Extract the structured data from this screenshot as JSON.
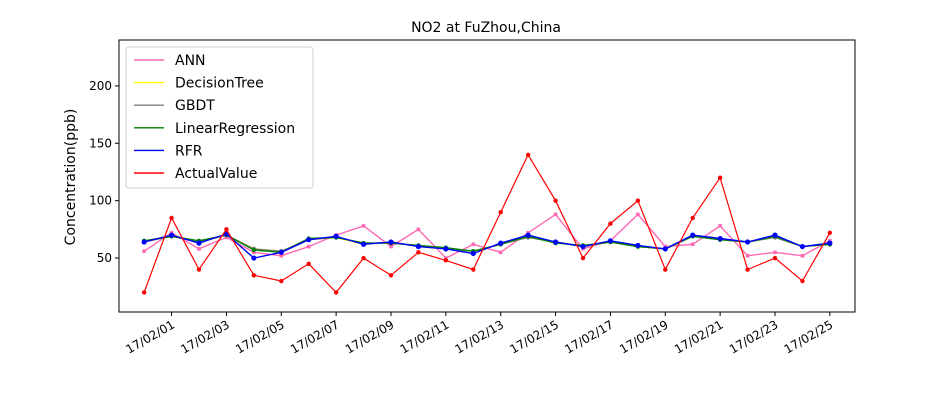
{
  "chart_data": {
    "type": "line",
    "title": "NO2 at FuZhou,China",
    "xlabel": "",
    "ylabel": "Concentration(ppb)",
    "x_unit": "date",
    "xlim": [
      "2017-01-30T02:00",
      "2017-02-25T22:00"
    ],
    "ylim": [
      3,
      240
    ],
    "xticks": [
      "17/02/01",
      "17/02/03",
      "17/02/05",
      "17/02/07",
      "17/02/09",
      "17/02/11",
      "17/02/13",
      "17/02/15",
      "17/02/17",
      "17/02/19",
      "17/02/21",
      "17/02/23",
      "17/02/25"
    ],
    "yticks": [
      50,
      100,
      150,
      200
    ],
    "grid": false,
    "legend_position": "top-left",
    "x": [
      "2017-01-31",
      "2017-02-01",
      "2017-02-02",
      "2017-02-03",
      "2017-02-04",
      "2017-02-05",
      "2017-02-06",
      "2017-02-07",
      "2017-02-08",
      "2017-02-09",
      "2017-02-10",
      "2017-02-11",
      "2017-02-12",
      "2017-02-13",
      "2017-02-14",
      "2017-02-15",
      "2017-02-16",
      "2017-02-17",
      "2017-02-18",
      "2017-02-19",
      "2017-02-20",
      "2017-02-21",
      "2017-02-22",
      "2017-02-23",
      "2017-02-24",
      "2017-02-25"
    ],
    "series": [
      {
        "name": "ANN",
        "color": "#ff69b4",
        "marker": "square",
        "values": [
          56,
          72,
          58,
          68,
          55,
          52,
          60,
          70,
          78,
          60,
          75,
          50,
          62,
          55,
          72,
          88,
          58,
          65,
          88,
          60,
          62,
          78,
          52,
          55,
          52,
          65
        ]
      },
      {
        "name": "DecisionTree",
        "color": "#ffff00",
        "marker": "circle",
        "values": [
          64,
          70,
          64,
          70,
          58,
          56,
          66,
          68,
          62,
          64,
          60,
          58,
          56,
          62,
          68,
          64,
          60,
          64,
          60,
          58,
          70,
          66,
          64,
          68,
          60,
          62
        ]
      },
      {
        "name": "GBDT",
        "color": "#808080",
        "marker": "circle",
        "values": [
          64,
          69,
          64,
          70,
          58,
          56,
          66,
          68,
          63,
          63,
          61,
          58,
          56,
          62,
          68,
          64,
          60,
          64,
          60,
          58,
          69,
          66,
          64,
          68,
          60,
          62
        ]
      },
      {
        "name": "LinearRegression",
        "color": "#008000",
        "marker": "circle",
        "values": [
          65,
          69,
          65,
          70,
          57,
          55,
          67,
          68,
          63,
          63,
          61,
          59,
          56,
          62,
          69,
          63,
          61,
          64,
          60,
          58,
          69,
          66,
          64,
          69,
          60,
          62
        ]
      },
      {
        "name": "RFR",
        "color": "#0000ff",
        "marker": "circle",
        "values": [
          64,
          70,
          63,
          71,
          50,
          55,
          66,
          69,
          62,
          64,
          60,
          58,
          54,
          63,
          70,
          64,
          60,
          65,
          61,
          58,
          70,
          67,
          64,
          70,
          60,
          63
        ]
      },
      {
        "name": "ActualValue",
        "color": "#ff0000",
        "marker": "circle",
        "values": [
          20,
          85,
          40,
          75,
          35,
          30,
          45,
          20,
          50,
          35,
          55,
          48,
          40,
          90,
          140,
          100,
          50,
          80,
          100,
          40,
          85,
          120,
          40,
          50,
          30,
          72
        ]
      }
    ]
  }
}
